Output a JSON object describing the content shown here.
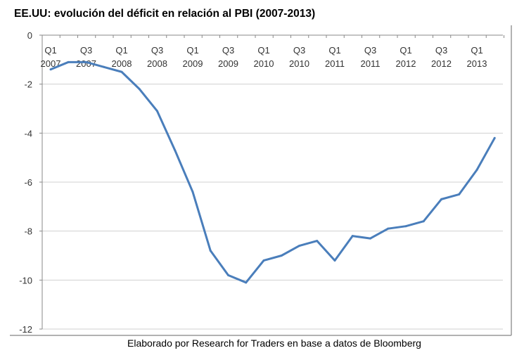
{
  "chart_data": {
    "type": "line",
    "title": "EE.UU: evolución del déficit en relación al PBI (2007-2013)",
    "caption": "Elaborado por Research for Traders en base a datos de Bloomberg",
    "xlabel": "",
    "ylabel": "",
    "ylim": [
      -12,
      0
    ],
    "yticks": [
      "0",
      "-2",
      "-4",
      "-6",
      "-8",
      "-10",
      "-12"
    ],
    "grid": true,
    "legend": "none",
    "line_color": "#4a7ebb",
    "x": [
      "Q1 2007",
      "Q2 2007",
      "Q3 2007",
      "Q4 2007",
      "Q1 2008",
      "Q2 2008",
      "Q3 2008",
      "Q4 2008",
      "Q1 2009",
      "Q2 2009",
      "Q3 2009",
      "Q4 2009",
      "Q1 2010",
      "Q2 2010",
      "Q3 2010",
      "Q4 2010",
      "Q1 2011",
      "Q2 2011",
      "Q3 2011",
      "Q4 2011",
      "Q1 2012",
      "Q2 2012",
      "Q3 2012",
      "Q4 2012",
      "Q1 2013",
      "Q2 2013"
    ],
    "xtick_labels": [
      [
        "Q1",
        "2007"
      ],
      [
        "Q3",
        "2007"
      ],
      [
        "Q1",
        "2008"
      ],
      [
        "Q3",
        "2008"
      ],
      [
        "Q1",
        "2009"
      ],
      [
        "Q3",
        "2009"
      ],
      [
        "Q1",
        "2010"
      ],
      [
        "Q3",
        "2010"
      ],
      [
        "Q1",
        "2011"
      ],
      [
        "Q3",
        "2011"
      ],
      [
        "Q1",
        "2012"
      ],
      [
        "Q3",
        "2012"
      ],
      [
        "Q1",
        "2013"
      ]
    ],
    "series": [
      {
        "values": [
          -1.4,
          -1.1,
          -1.1,
          -1.3,
          -1.5,
          -2.2,
          -3.1,
          -4.7,
          -6.4,
          -8.8,
          -9.8,
          -10.1,
          -9.2,
          -9.0,
          -8.6,
          -8.4,
          -9.2,
          -8.2,
          -8.3,
          -7.9,
          -7.8,
          -7.6,
          -6.7,
          -6.5,
          -5.5,
          -4.2
        ]
      }
    ]
  }
}
